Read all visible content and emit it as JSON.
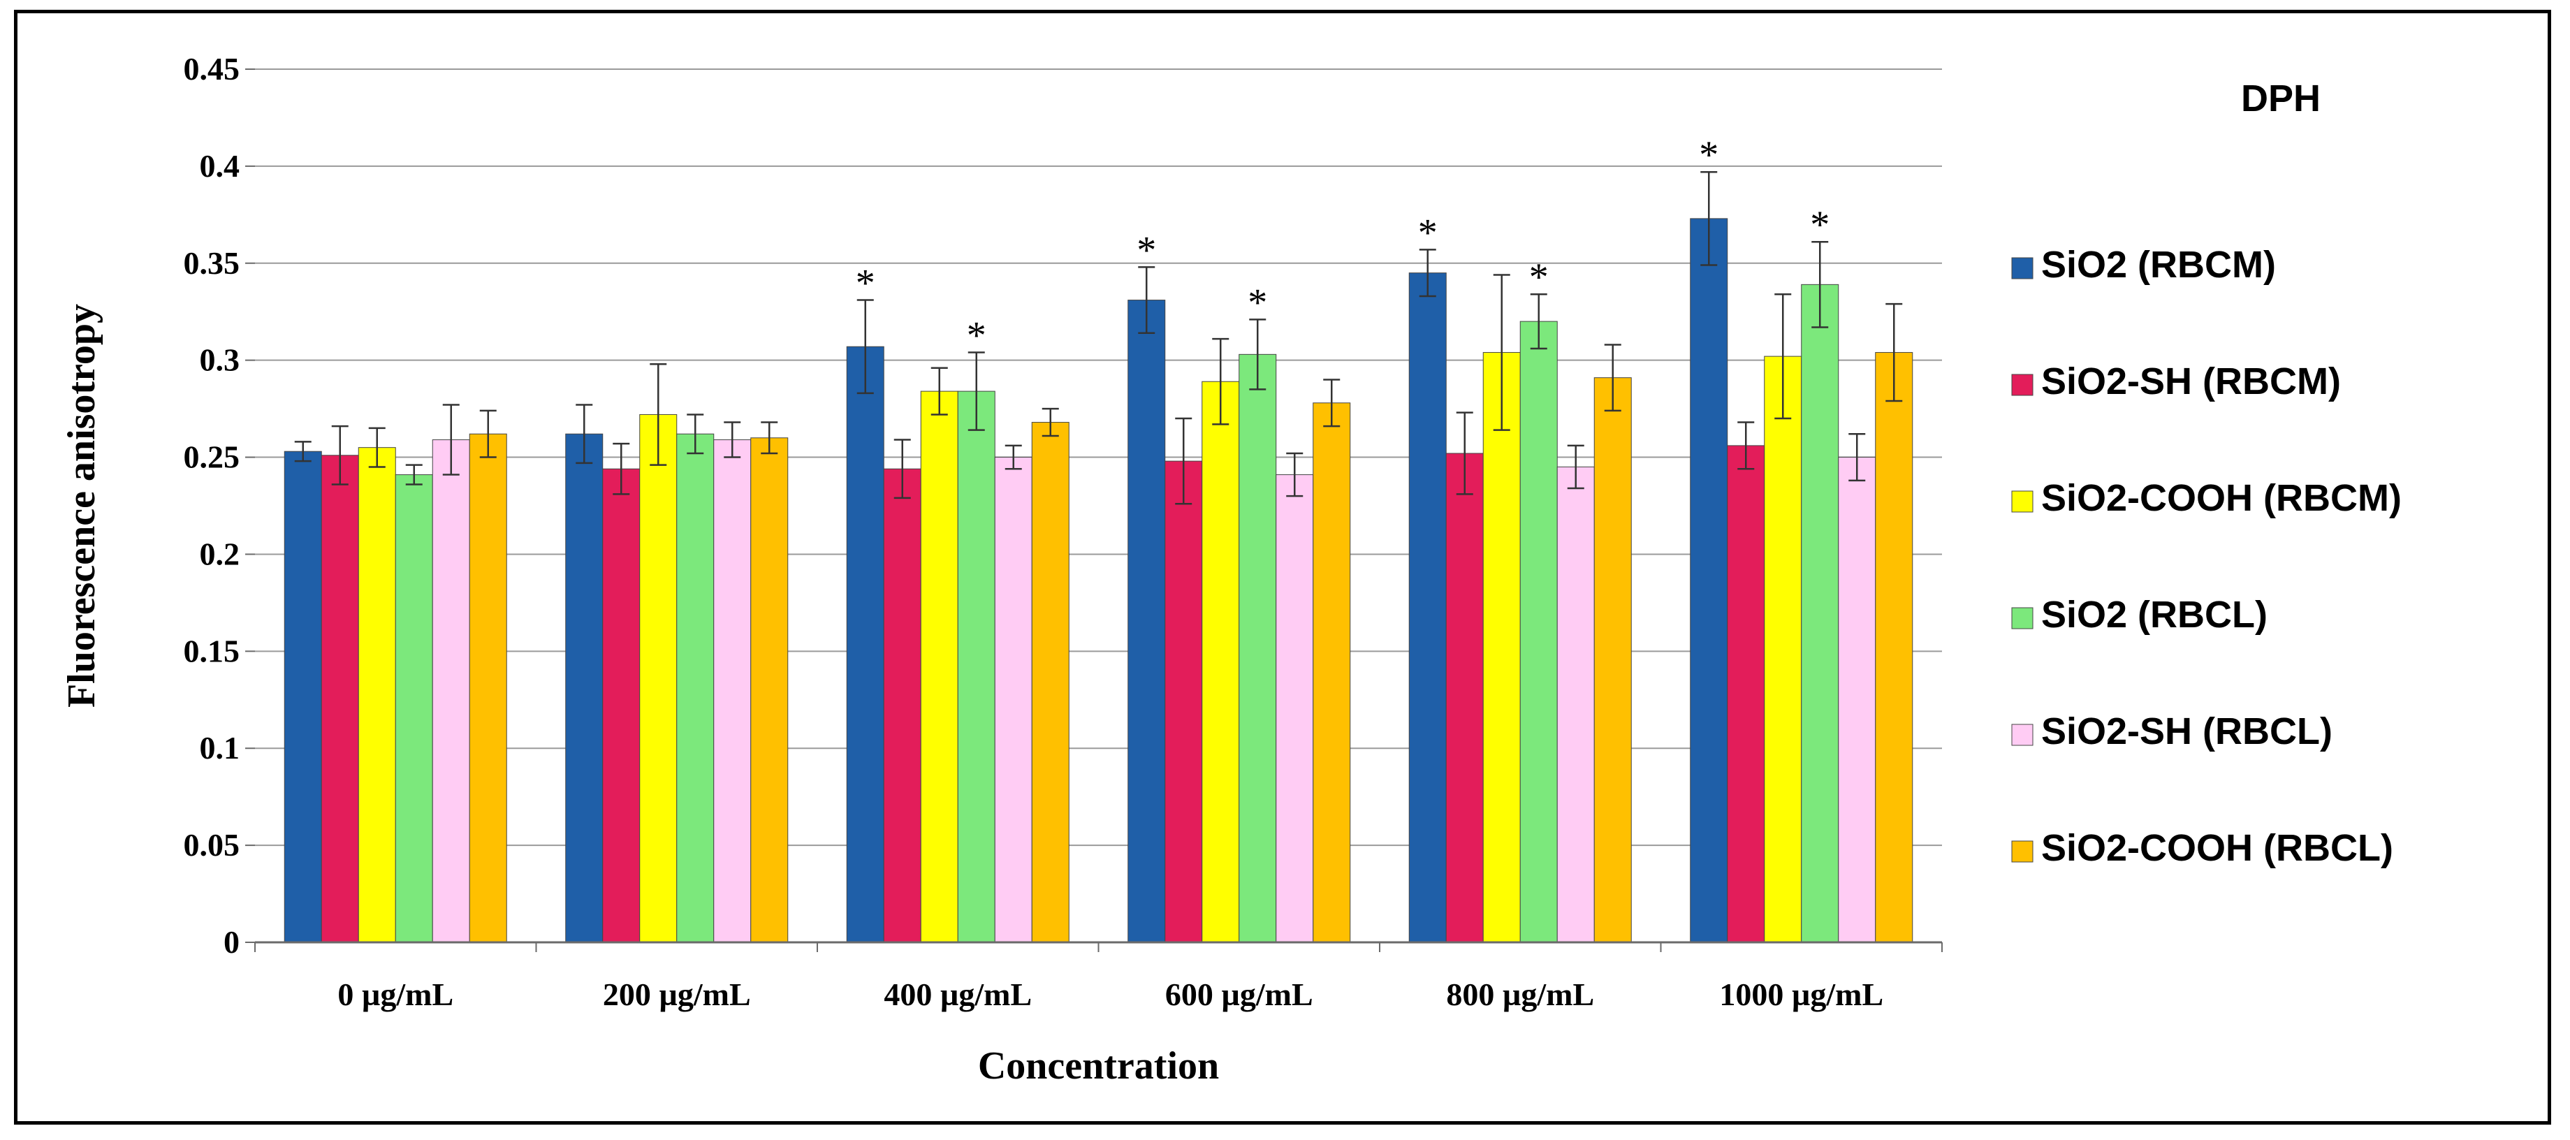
{
  "chart_data": {
    "type": "bar",
    "title": "",
    "xlabel": "Concentration",
    "ylabel": "Fluorescence anisotropy",
    "ylim": [
      0,
      0.45
    ],
    "yticks": [
      "0",
      "0.05",
      "0.1",
      "0.15",
      "0.2",
      "0.25",
      "0.3",
      "0.35",
      "0.4",
      "0.45"
    ],
    "grid": true,
    "legend_title": "DPH",
    "legend_position": "right",
    "significance_marker": "*",
    "categories": [
      "0 µg/mL",
      "200 µg/mL",
      "400 µg/mL",
      "600 µg/mL",
      "800 µg/mL",
      "1000 µg/mL"
    ],
    "series": [
      {
        "name": "SiO2 (RBCM)",
        "color": "#1f5fa8",
        "values": [
          0.253,
          0.262,
          0.307,
          0.331,
          0.345,
          0.373
        ],
        "errors": [
          0.005,
          0.015,
          0.024,
          0.017,
          0.012,
          0.024
        ],
        "significant": [
          false,
          false,
          true,
          true,
          true,
          true
        ]
      },
      {
        "name": "SiO2-SH (RBCM)",
        "color": "#e31d5a",
        "values": [
          0.251,
          0.244,
          0.244,
          0.248,
          0.252,
          0.256
        ],
        "errors": [
          0.015,
          0.013,
          0.015,
          0.022,
          0.021,
          0.012
        ],
        "significant": [
          false,
          false,
          false,
          false,
          false,
          false
        ]
      },
      {
        "name": "SiO2-COOH  (RBCM)",
        "color": "#ffff00",
        "values": [
          0.255,
          0.272,
          0.284,
          0.289,
          0.304,
          0.302
        ],
        "errors": [
          0.01,
          0.026,
          0.012,
          0.022,
          0.04,
          0.032
        ],
        "significant": [
          false,
          false,
          false,
          false,
          false,
          false
        ]
      },
      {
        "name": "SiO2 (RBCL)",
        "color": "#7ce87c",
        "values": [
          0.241,
          0.262,
          0.284,
          0.303,
          0.32,
          0.339
        ],
        "errors": [
          0.005,
          0.01,
          0.02,
          0.018,
          0.014,
          0.022
        ],
        "significant": [
          false,
          false,
          true,
          true,
          true,
          true
        ]
      },
      {
        "name": "SiO2-SH (RBCL)",
        "color": "#ffccf4",
        "values": [
          0.259,
          0.259,
          0.25,
          0.241,
          0.245,
          0.25
        ],
        "errors": [
          0.018,
          0.009,
          0.006,
          0.011,
          0.011,
          0.012
        ],
        "significant": [
          false,
          false,
          false,
          false,
          false,
          false
        ]
      },
      {
        "name": "SiO2-COOH  (RBCL)",
        "color": "#ffc000",
        "values": [
          0.262,
          0.26,
          0.268,
          0.278,
          0.291,
          0.304
        ],
        "errors": [
          0.012,
          0.008,
          0.007,
          0.012,
          0.017,
          0.025
        ],
        "significant": [
          false,
          false,
          false,
          false,
          false,
          false
        ]
      }
    ]
  }
}
